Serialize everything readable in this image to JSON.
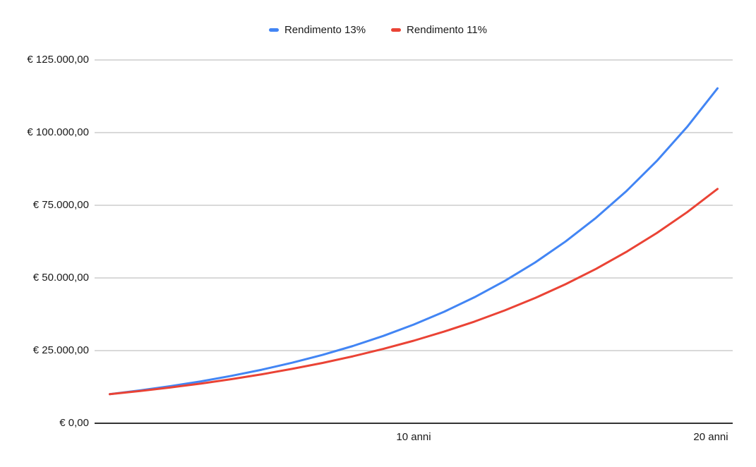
{
  "chart_data": {
    "type": "line",
    "title": "",
    "xlabel": "",
    "ylabel": "",
    "x": [
      0,
      1,
      2,
      3,
      4,
      5,
      6,
      7,
      8,
      9,
      10,
      11,
      12,
      13,
      14,
      15,
      16,
      17,
      18,
      19,
      20
    ],
    "x_tick_labels": [
      {
        "index": 10,
        "label": "10 anni"
      },
      {
        "index": 20,
        "label": "20 anni"
      }
    ],
    "y_ticks": [
      {
        "value": 0,
        "label": "€ 0,00"
      },
      {
        "value": 25000,
        "label": "€ 25.000,00"
      },
      {
        "value": 50000,
        "label": "€ 50.000,00"
      },
      {
        "value": 75000,
        "label": "€ 75.000,00"
      },
      {
        "value": 100000,
        "label": "€ 100.000,00"
      },
      {
        "value": 125000,
        "label": "€ 125.000,00"
      }
    ],
    "ylim": [
      0,
      125000
    ],
    "grid": true,
    "legend_position": "top",
    "background_color": "#ffffff",
    "gridline_color": "#d9d9d9",
    "axis_line_color": "#333333",
    "text_color": "#1a1a1a",
    "series": [
      {
        "name": "Rendimento 13%",
        "color": "#4285F4",
        "values": [
          10000,
          11300,
          12769,
          14428.97,
          16304.74,
          18424.35,
          20819.52,
          23526.05,
          26584.44,
          30040.42,
          33945.67,
          38358.61,
          43345.23,
          48980.11,
          55347.53,
          62542.7,
          70673.26,
          79860.78,
          90242.68,
          101974.23,
          115230.88
        ]
      },
      {
        "name": "Rendimento 11%",
        "color": "#EA4335",
        "values": [
          10000,
          11100,
          12321,
          13676.31,
          15180.7,
          16850.58,
          18704.15,
          20761.6,
          23045.38,
          25580.37,
          28394.21,
          31517.57,
          34984.51,
          38832.8,
          43104.41,
          47845.89,
          53108.94,
          58950.93,
          65435.53,
          72633.44,
          80623.12
        ]
      }
    ]
  }
}
